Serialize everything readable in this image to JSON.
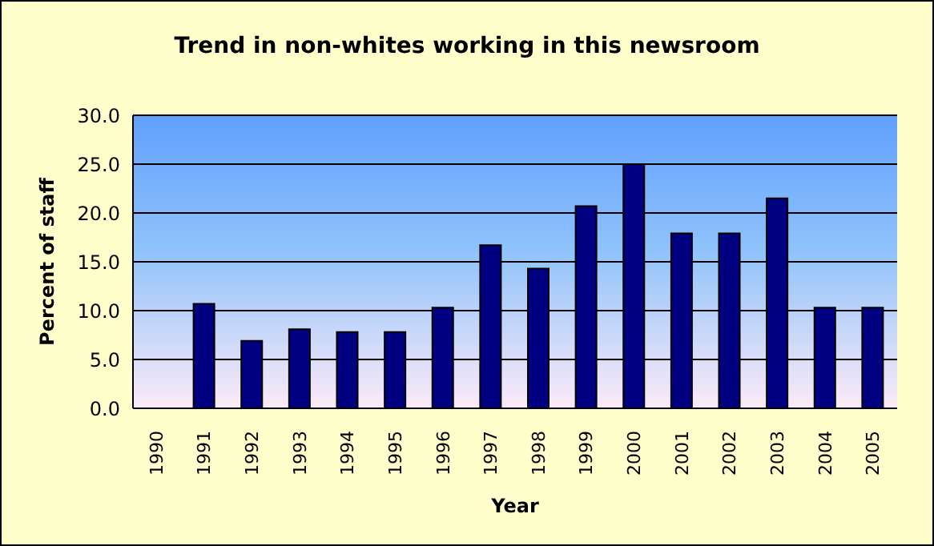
{
  "chart_data": {
    "type": "bar",
    "title": "Trend in non-whites working in this newsroom",
    "xlabel": "Year",
    "ylabel": "Percent of staff",
    "categories": [
      "1990",
      "1991",
      "1992",
      "1993",
      "1994",
      "1995",
      "1996",
      "1997",
      "1998",
      "1999",
      "2000",
      "2001",
      "2002",
      "2003",
      "2004",
      "2005"
    ],
    "values": [
      null,
      10.7,
      6.9,
      8.1,
      7.8,
      7.8,
      10.3,
      16.7,
      14.3,
      20.7,
      25.0,
      17.9,
      17.9,
      21.5,
      10.3,
      10.3
    ],
    "color": "#000080",
    "ylim": [
      0,
      30
    ],
    "yticks": [
      {
        "value": 0,
        "label": "0.0"
      },
      {
        "value": 5,
        "label": "5.0"
      },
      {
        "value": 10,
        "label": "10.0"
      },
      {
        "value": 15,
        "label": "15.0"
      },
      {
        "value": 20,
        "label": "20.0"
      },
      {
        "value": 25,
        "label": "25.0"
      },
      {
        "value": 30,
        "label": "30.0"
      }
    ],
    "grid": "y",
    "legend": false
  }
}
